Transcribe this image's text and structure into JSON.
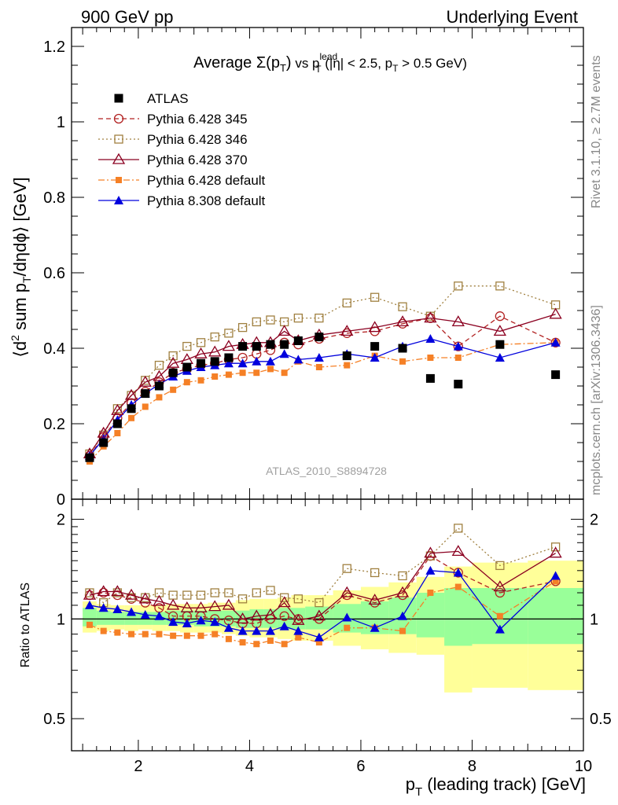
{
  "header": {
    "left": "900 GeV pp",
    "right": "Underlying Event"
  },
  "side_labels": {
    "rivet": "Rivet 3.1.10, ≥ 2.7M events",
    "mcplots": "mcplots.cern.ch [arXiv:1306.3436]"
  },
  "chart_data": [
    {
      "type": "scatter",
      "title": "Average Σ(p_T) vs p_T^lead (|η| < 2.5, p_T > 0.5 GeV)",
      "title_parts": {
        "main": "Average ",
        "sigma": "Σ(p",
        "sigma_sub": "T",
        "sigma_end": ")",
        "vs": " vs p",
        "sup": "lead",
        "sub": "T",
        "rest": " (|η| < 2.5, p",
        "rest_sub": "T",
        "rest_end": " > 0.5 GeV)"
      },
      "ylabel_parts": {
        "a": "⟨d",
        "sup": "2",
        "b": " sum p",
        "sub": "T",
        "c": "/dηdϕ⟩ [GeV]"
      },
      "watermark": "ATLAS_2010_S8894728",
      "xlim": [
        0.8,
        10.0
      ],
      "ylim": [
        0,
        1.25
      ],
      "x_ticks": [
        2,
        4,
        6,
        8,
        10
      ],
      "y_ticks": [
        0,
        0.2,
        0.4,
        0.6,
        0.8,
        1,
        1.2
      ],
      "y_tick_labels": [
        "0",
        "0.2",
        "0.4",
        "0.6",
        "0.8",
        "1",
        "1.2"
      ],
      "legend_position": "top-left",
      "x": [
        1.125,
        1.375,
        1.625,
        1.875,
        2.125,
        2.375,
        2.625,
        2.875,
        3.125,
        3.375,
        3.625,
        3.875,
        4.125,
        4.375,
        4.625,
        4.875,
        5.25,
        5.75,
        6.25,
        6.75,
        7.25,
        7.75,
        8.5,
        9.5
      ],
      "series": [
        {
          "name": "ATLAS",
          "color": "#000000",
          "marker": "square-filled",
          "line": "none",
          "values": [
            0.11,
            0.15,
            0.2,
            0.24,
            0.28,
            0.3,
            0.335,
            0.35,
            0.36,
            0.365,
            0.375,
            0.405,
            0.405,
            0.41,
            0.41,
            0.42,
            0.43,
            0.38,
            0.405,
            0.4,
            0.32,
            0.305,
            0.41,
            0.33
          ]
        },
        {
          "name": "Pythia 6.428 345",
          "color": "#b22222",
          "marker": "circle-open",
          "line": "dashed",
          "values": [
            0.115,
            0.165,
            0.215,
            0.255,
            0.285,
            0.31,
            0.335,
            0.345,
            0.355,
            0.36,
            0.37,
            0.375,
            0.385,
            0.395,
            0.415,
            0.41,
            0.425,
            0.44,
            0.445,
            0.465,
            0.48,
            0.405,
            0.485,
            0.415
          ]
        },
        {
          "name": "Pythia 6.428 346",
          "color": "#a08040",
          "marker": "square-open",
          "line": "dotted",
          "values": [
            0.12,
            0.17,
            0.24,
            0.275,
            0.315,
            0.355,
            0.38,
            0.405,
            0.415,
            0.43,
            0.44,
            0.455,
            0.47,
            0.475,
            0.47,
            0.48,
            0.48,
            0.52,
            0.535,
            0.51,
            0.485,
            0.565,
            0.565,
            0.515
          ]
        },
        {
          "name": "Pythia 6.428 370",
          "color": "#8b0020",
          "marker": "triangle-open",
          "line": "solid",
          "values": [
            0.12,
            0.175,
            0.235,
            0.275,
            0.31,
            0.325,
            0.36,
            0.37,
            0.385,
            0.39,
            0.405,
            0.41,
            0.415,
            0.415,
            0.445,
            0.42,
            0.435,
            0.445,
            0.455,
            0.47,
            0.48,
            0.47,
            0.445,
            0.49
          ]
        },
        {
          "name": "Pythia 6.428 default",
          "color": "#f58026",
          "marker": "square-filled-small",
          "line": "dashdot",
          "values": [
            0.1,
            0.14,
            0.175,
            0.215,
            0.245,
            0.27,
            0.29,
            0.31,
            0.315,
            0.325,
            0.33,
            0.335,
            0.335,
            0.345,
            0.335,
            0.365,
            0.35,
            0.355,
            0.38,
            0.365,
            0.375,
            0.375,
            0.41,
            0.415
          ]
        },
        {
          "name": "Pythia 8.308 default",
          "color": "#0000dd",
          "marker": "triangle-filled",
          "line": "solid",
          "values": [
            0.115,
            0.16,
            0.21,
            0.25,
            0.28,
            0.305,
            0.325,
            0.34,
            0.35,
            0.355,
            0.36,
            0.36,
            0.365,
            0.365,
            0.385,
            0.37,
            0.375,
            0.385,
            0.375,
            0.405,
            0.425,
            0.405,
            0.375,
            0.415
          ]
        }
      ]
    },
    {
      "type": "scatter",
      "ylabel": "Ratio to ATLAS",
      "xlabel_parts": {
        "a": "p",
        "sub": "T",
        "b": " (leading track) [GeV]"
      },
      "xlim": [
        0.8,
        10.0
      ],
      "ylim": [
        0.4,
        2.3
      ],
      "y_log": true,
      "x_ticks": [
        2,
        4,
        6,
        8,
        10
      ],
      "y_ticks": [
        0.5,
        1,
        2
      ],
      "y_tick_labels": [
        "0.5",
        "1",
        "2"
      ],
      "band_edges": [
        1.0,
        1.25,
        1.5,
        1.75,
        2.0,
        2.25,
        2.5,
        2.75,
        3.0,
        3.25,
        3.5,
        3.75,
        4.0,
        4.25,
        4.5,
        4.75,
        5.0,
        5.5,
        6.0,
        6.5,
        7.0,
        7.5,
        8.0,
        9.0,
        10.0
      ],
      "band_inner": [
        [
          0.95,
          1.08
        ],
        [
          0.96,
          1.06
        ],
        [
          0.96,
          1.05
        ],
        [
          0.96,
          1.05
        ],
        [
          0.96,
          1.05
        ],
        [
          0.96,
          1.05
        ],
        [
          0.96,
          1.06
        ],
        [
          0.96,
          1.06
        ],
        [
          0.95,
          1.06
        ],
        [
          0.95,
          1.06
        ],
        [
          0.95,
          1.06
        ],
        [
          0.94,
          1.06
        ],
        [
          0.94,
          1.07
        ],
        [
          0.94,
          1.07
        ],
        [
          0.93,
          1.08
        ],
        [
          0.93,
          1.08
        ],
        [
          0.93,
          1.09
        ],
        [
          0.91,
          1.11
        ],
        [
          0.9,
          1.13
        ],
        [
          0.9,
          1.16
        ],
        [
          0.88,
          1.2
        ],
        [
          0.83,
          1.24
        ],
        [
          0.84,
          1.24
        ],
        [
          0.84,
          1.24
        ]
      ],
      "band_outer": [
        [
          0.91,
          1.13
        ],
        [
          0.92,
          1.11
        ],
        [
          0.93,
          1.1
        ],
        [
          0.92,
          1.1
        ],
        [
          0.93,
          1.1
        ],
        [
          0.92,
          1.1
        ],
        [
          0.92,
          1.11
        ],
        [
          0.91,
          1.11
        ],
        [
          0.91,
          1.11
        ],
        [
          0.91,
          1.12
        ],
        [
          0.9,
          1.12
        ],
        [
          0.89,
          1.14
        ],
        [
          0.88,
          1.15
        ],
        [
          0.88,
          1.15
        ],
        [
          0.87,
          1.16
        ],
        [
          0.86,
          1.18
        ],
        [
          0.86,
          1.18
        ],
        [
          0.83,
          1.22
        ],
        [
          0.81,
          1.25
        ],
        [
          0.79,
          1.29
        ],
        [
          0.78,
          1.34
        ],
        [
          0.6,
          1.44
        ],
        [
          0.62,
          1.48
        ],
        [
          0.61,
          1.5
        ]
      ],
      "series": [
        {
          "name": "Pythia 6.428 345",
          "values": [
            1.18,
            1.2,
            1.18,
            1.15,
            1.12,
            1.08,
            1.02,
            1.02,
            1.02,
            1.0,
            0.99,
            0.97,
            0.97,
            1.0,
            1.02,
            1.0,
            1.0,
            1.18,
            1.12,
            1.18,
            1.55,
            1.38,
            1.2,
            1.3
          ]
        },
        {
          "name": "Pythia 6.428 346",
          "values": [
            1.2,
            1.12,
            1.2,
            1.16,
            1.16,
            1.2,
            1.18,
            1.18,
            1.18,
            1.2,
            1.2,
            1.15,
            1.2,
            1.22,
            1.16,
            1.15,
            1.12,
            1.42,
            1.38,
            1.35,
            1.55,
            1.88,
            1.45,
            1.65
          ]
        },
        {
          "name": "Pythia 6.428 370",
          "values": [
            1.18,
            1.21,
            1.21,
            1.18,
            1.15,
            1.13,
            1.1,
            1.08,
            1.08,
            1.09,
            1.1,
            1.0,
            1.02,
            1.03,
            1.12,
            0.99,
            1.02,
            1.2,
            1.14,
            1.2,
            1.58,
            1.6,
            1.25,
            1.58
          ]
        },
        {
          "name": "Pythia 6.428 default",
          "values": [
            0.96,
            0.92,
            0.91,
            0.9,
            0.9,
            0.9,
            0.89,
            0.89,
            0.89,
            0.9,
            0.87,
            0.85,
            0.84,
            0.86,
            0.84,
            0.88,
            0.85,
            0.94,
            0.94,
            0.92,
            1.2,
            1.25,
            1.02,
            1.3
          ]
        },
        {
          "name": "Pythia 8.308 default",
          "values": [
            1.1,
            1.08,
            1.07,
            1.05,
            1.03,
            1.02,
            0.98,
            0.97,
            0.99,
            0.98,
            0.94,
            0.92,
            0.92,
            0.92,
            0.95,
            0.92,
            0.88,
            1.01,
            0.94,
            1.02,
            1.4,
            1.38,
            0.93,
            1.35
          ]
        }
      ]
    }
  ]
}
